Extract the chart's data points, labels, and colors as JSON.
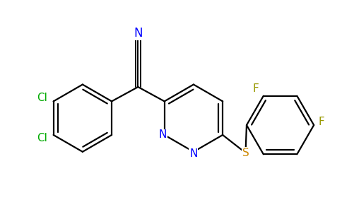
{
  "bg_color": "#ffffff",
  "bond_color": "#000000",
  "bond_width": 1.6,
  "atom_colors": {
    "N": "#0000ff",
    "Cl": "#00aa00",
    "F": "#999900",
    "S": "#cc8800",
    "C": "#000000"
  },
  "font_size": 11
}
